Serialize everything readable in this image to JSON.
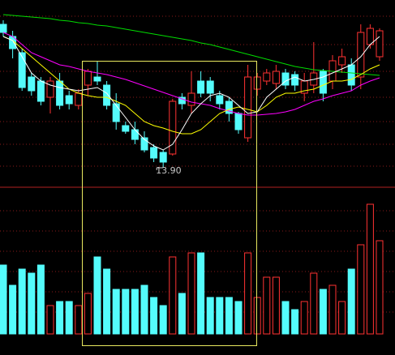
{
  "chart_data": {
    "type": "candlestick",
    "up_color": "#ff3232",
    "down_color": "#54fcfc",
    "ylim": [
      13.67,
      15.97
    ],
    "volume_lim": [
      0,
      180
    ],
    "low_label": "13.90",
    "open": [
      15.67,
      15.52,
      15.32,
      15.02,
      14.97,
      14.77,
      14.97,
      14.79,
      14.67,
      14.92,
      15.02,
      14.92,
      14.69,
      14.42,
      14.37,
      14.27,
      14.15,
      14.09,
      14.07,
      14.77,
      14.67,
      14.97,
      14.97,
      14.79,
      14.72,
      14.57,
      14.27,
      14.87,
      14.97,
      14.94,
      15.07,
      15.05,
      14.82,
      14.92,
      15.09,
      14.97,
      15.17,
      15.17,
      15.02,
      15.42,
      15.27
    ],
    "high": [
      15.72,
      15.59,
      15.37,
      15.07,
      15.02,
      15.02,
      15.07,
      14.85,
      14.87,
      15.12,
      15.22,
      14.97,
      14.82,
      14.47,
      14.47,
      14.35,
      14.19,
      14.12,
      14.75,
      14.82,
      15.09,
      15.09,
      15.02,
      14.85,
      14.77,
      14.59,
      15.17,
      15.07,
      15.12,
      15.17,
      15.12,
      15.09,
      15.07,
      15.45,
      15.12,
      15.29,
      15.37,
      15.25,
      15.67,
      15.67,
      15.62
    ],
    "low": [
      15.52,
      15.25,
      14.85,
      14.79,
      14.67,
      14.57,
      14.62,
      14.62,
      14.62,
      14.79,
      14.92,
      14.62,
      14.37,
      14.32,
      14.19,
      14.09,
      13.97,
      13.9,
      14.05,
      14.62,
      14.57,
      14.77,
      14.72,
      14.62,
      14.47,
      14.32,
      14.22,
      14.79,
      14.92,
      14.87,
      14.87,
      14.85,
      14.72,
      14.82,
      14.72,
      14.87,
      15.07,
      14.85,
      14.87,
      15.37,
      15.22
    ],
    "close": [
      15.57,
      15.37,
      14.89,
      14.85,
      14.72,
      14.97,
      14.67,
      14.69,
      14.82,
      15.09,
      14.97,
      14.67,
      14.47,
      14.35,
      14.25,
      14.12,
      14.02,
      13.97,
      14.72,
      14.69,
      14.82,
      14.82,
      14.82,
      14.69,
      14.57,
      14.37,
      15.02,
      15.02,
      15.07,
      15.09,
      14.92,
      14.92,
      14.97,
      15.07,
      14.82,
      15.22,
      15.27,
      14.92,
      15.57,
      15.62,
      15.59
    ],
    "volume": [
      85,
      60,
      80,
      75,
      85,
      35,
      40,
      40,
      35,
      50,
      95,
      80,
      55,
      55,
      55,
      60,
      45,
      35,
      95,
      50,
      100,
      100,
      45,
      45,
      45,
      40,
      100,
      45,
      70,
      70,
      40,
      30,
      40,
      75,
      55,
      60,
      40,
      80,
      110,
      160,
      115
    ],
    "lines": [
      {
        "color": "#00dd00",
        "values": [
          15.79,
          15.78,
          15.77,
          15.76,
          15.75,
          15.74,
          15.72,
          15.71,
          15.69,
          15.68,
          15.66,
          15.65,
          15.63,
          15.61,
          15.59,
          15.57,
          15.55,
          15.53,
          15.51,
          15.49,
          15.47,
          15.44,
          15.42,
          15.39,
          15.36,
          15.33,
          15.3,
          15.27,
          15.24,
          15.21,
          15.18,
          15.15,
          15.13,
          15.11,
          15.1,
          15.09,
          15.08,
          15.07,
          15.06,
          15.05,
          15.04
        ]
      },
      {
        "color": "#ff00ff",
        "values": [
          15.57,
          15.52,
          15.42,
          15.32,
          15.27,
          15.22,
          15.17,
          15.15,
          15.12,
          15.09,
          15.07,
          15.05,
          15.02,
          14.99,
          14.95,
          14.91,
          14.87,
          14.83,
          14.79,
          14.75,
          14.71,
          14.69,
          14.67,
          14.63,
          14.6,
          14.57,
          14.55,
          14.55,
          14.56,
          14.57,
          14.59,
          14.62,
          14.67,
          14.72,
          14.75,
          14.79,
          14.82,
          14.85,
          14.92,
          14.97,
          15.01
        ]
      },
      {
        "color": "#ffff00",
        "values": [
          15.52,
          15.47,
          15.37,
          15.27,
          15.17,
          15.07,
          14.97,
          14.87,
          14.82,
          14.79,
          14.77,
          14.77,
          14.72,
          14.67,
          14.57,
          14.47,
          14.42,
          14.39,
          14.35,
          14.32,
          14.32,
          14.37,
          14.47,
          14.57,
          14.62,
          14.65,
          14.62,
          14.59,
          14.67,
          14.77,
          14.82,
          14.82,
          14.85,
          14.87,
          14.92,
          14.97,
          14.97,
          14.99,
          15.05,
          15.12,
          15.17
        ]
      },
      {
        "color": "#ffffff",
        "values": [
          15.52,
          15.47,
          15.27,
          15.07,
          14.97,
          14.92,
          14.89,
          14.87,
          14.85,
          14.87,
          14.89,
          14.82,
          14.67,
          14.52,
          14.37,
          14.25,
          14.17,
          14.12,
          14.19,
          14.37,
          14.57,
          14.69,
          14.79,
          14.82,
          14.77,
          14.67,
          14.57,
          14.59,
          14.77,
          14.87,
          14.97,
          15.02,
          14.97,
          14.99,
          15.02,
          15.07,
          15.12,
          15.17,
          15.27,
          15.42,
          15.52
        ]
      }
    ]
  }
}
